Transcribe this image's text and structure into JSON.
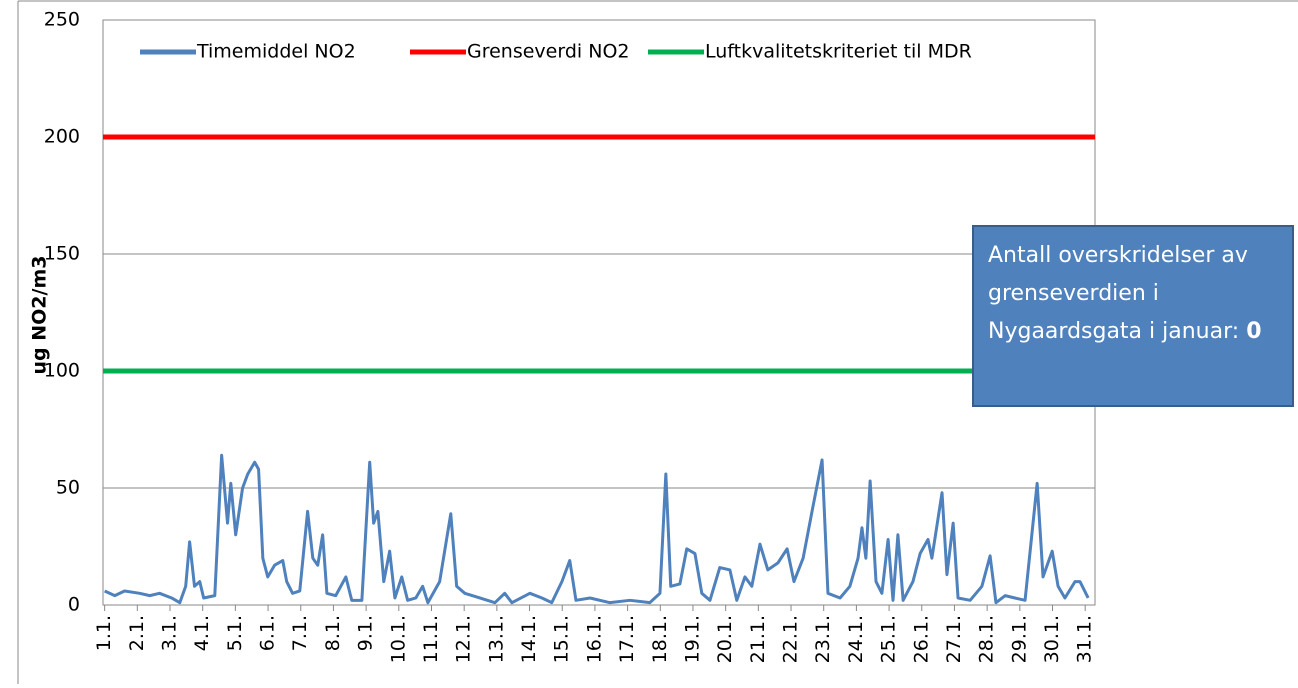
{
  "chart_data": {
    "type": "line",
    "y_label": "ug NO2/m3",
    "ylim": [
      0,
      250
    ],
    "yticks": [
      0,
      50,
      100,
      150,
      200,
      250
    ],
    "grid": true,
    "xlim": [
      -0.05,
      30.3
    ],
    "xticks": [
      {
        "value": 0,
        "label": "1.1."
      },
      {
        "value": 1,
        "label": "2.1."
      },
      {
        "value": 2,
        "label": "3.1."
      },
      {
        "value": 3,
        "label": "4.1."
      },
      {
        "value": 4,
        "label": "5.1."
      },
      {
        "value": 5,
        "label": "6.1."
      },
      {
        "value": 6,
        "label": "7.1."
      },
      {
        "value": 7,
        "label": "8.1."
      },
      {
        "value": 8,
        "label": "9.1."
      },
      {
        "value": 9,
        "label": "10.1."
      },
      {
        "value": 10,
        "label": "11.1."
      },
      {
        "value": 11,
        "label": "12.1."
      },
      {
        "value": 12,
        "label": "13.1."
      },
      {
        "value": 13,
        "label": "14.1."
      },
      {
        "value": 14,
        "label": "15.1."
      },
      {
        "value": 15,
        "label": "16.1."
      },
      {
        "value": 16,
        "label": "17.1."
      },
      {
        "value": 17,
        "label": "18.1."
      },
      {
        "value": 18,
        "label": "19.1."
      },
      {
        "value": 19,
        "label": "20.1."
      },
      {
        "value": 20,
        "label": "21.1."
      },
      {
        "value": 21,
        "label": "22.1."
      },
      {
        "value": 22,
        "label": "23.1."
      },
      {
        "value": 23,
        "label": "24.1."
      },
      {
        "value": 24,
        "label": "25.1."
      },
      {
        "value": 25,
        "label": "26.1."
      },
      {
        "value": 26,
        "label": "27.1."
      },
      {
        "value": 27,
        "label": "28.1."
      },
      {
        "value": 28,
        "label": "29.1."
      },
      {
        "value": 29,
        "label": "30.1."
      },
      {
        "value": 30,
        "label": "31.1."
      }
    ],
    "legend": "top",
    "series": [
      {
        "name": "Timemiddel NO2",
        "color": "#4f81bd",
        "x": [
          0,
          0.31,
          0.61,
          1.07,
          1.38,
          1.68,
          2.05,
          2.3,
          2.48,
          2.6,
          2.75,
          2.91,
          3.03,
          3.37,
          3.58,
          3.76,
          3.86,
          4.01,
          4.22,
          4.38,
          4.59,
          4.71,
          4.84,
          4.99,
          5.2,
          5.45,
          5.57,
          5.75,
          5.97,
          6.21,
          6.37,
          6.52,
          6.67,
          6.8,
          7.07,
          7.38,
          7.56,
          7.87,
          8.11,
          8.23,
          8.36,
          8.54,
          8.72,
          8.88,
          9.09,
          9.27,
          9.52,
          9.73,
          9.89,
          10.25,
          10.59,
          10.77,
          11.02,
          11.48,
          11.94,
          12.24,
          12.46,
          13.01,
          13.38,
          13.68,
          13.99,
          14.23,
          14.42,
          14.85,
          15.46,
          16.07,
          16.68,
          16.99,
          17.17,
          17.32,
          17.6,
          17.81,
          18.06,
          18.27,
          18.52,
          18.82,
          19.13,
          19.34,
          19.59,
          19.8,
          20.05,
          20.29,
          20.6,
          20.88,
          21.09,
          21.37,
          21.67,
          21.95,
          22.13,
          22.5,
          22.8,
          23.05,
          23.17,
          23.29,
          23.42,
          23.6,
          23.78,
          23.97,
          24.12,
          24.27,
          24.43,
          24.73,
          24.95,
          25.19,
          25.31,
          25.62,
          25.77,
          25.96,
          26.11,
          26.48,
          26.84,
          27.09,
          27.27,
          27.55,
          27.85,
          28.16,
          28.53,
          28.71,
          28.99,
          29.17,
          29.38,
          29.69,
          29.84,
          30.09
        ],
        "values": [
          6,
          4,
          6,
          5,
          4,
          5,
          3,
          1,
          8,
          27,
          8,
          10,
          3,
          4,
          64,
          35,
          52,
          30,
          50,
          56,
          61,
          58,
          20,
          12,
          17,
          19,
          10,
          5,
          6,
          40,
          20,
          17,
          30,
          5,
          4,
          12,
          2,
          2,
          61,
          35,
          40,
          10,
          23,
          3,
          12,
          2,
          3,
          8,
          1,
          10,
          39,
          8,
          5,
          3,
          1,
          5,
          1,
          5,
          3,
          1,
          10,
          19,
          2,
          3,
          1,
          2,
          1,
          5,
          56,
          8,
          9,
          24,
          22,
          5,
          2,
          16,
          15,
          2,
          12,
          8,
          26,
          15,
          18,
          24,
          10,
          20,
          42,
          62,
          5,
          3,
          8,
          20,
          33,
          20,
          53,
          10,
          5,
          28,
          2,
          30,
          2,
          10,
          22,
          28,
          20,
          48,
          13,
          35,
          3,
          2,
          8,
          21,
          1,
          4,
          3,
          2,
          52,
          12,
          23,
          8,
          3,
          10,
          10,
          3
        ]
      },
      {
        "name": "Grenseverdi NO2",
        "color": "#ff0000",
        "x": [
          -0.05,
          30.3
        ],
        "values": [
          200,
          200
        ]
      },
      {
        "name": "Luftkvalitetskriteriet til MDR",
        "color": "#00b050",
        "x": [
          -0.05,
          30.3
        ],
        "values": [
          100,
          100
        ]
      }
    ]
  },
  "annotation": {
    "text": "Antall overskridelser av grenseverdien i Nygaardsgata i januar:",
    "count": 0
  }
}
